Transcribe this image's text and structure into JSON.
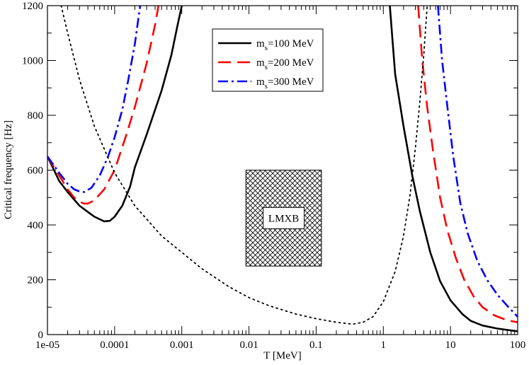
{
  "chart_data": {
    "type": "line",
    "xscale": "log",
    "xlabel": "T [MeV]",
    "ylabel": "Critical frequency [Hz]",
    "xlim": [
      1e-05,
      100
    ],
    "ylim": [
      0,
      1200
    ],
    "xticks": [
      {
        "value": 1e-05,
        "label": "1e-05"
      },
      {
        "value": 0.0001,
        "label": "0.0001"
      },
      {
        "value": 0.001,
        "label": "0.001"
      },
      {
        "value": 0.01,
        "label": "0.01"
      },
      {
        "value": 0.1,
        "label": "0.1"
      },
      {
        "value": 1,
        "label": "1"
      },
      {
        "value": 10,
        "label": "10"
      },
      {
        "value": 100,
        "label": "100"
      }
    ],
    "yticks": [
      {
        "value": 0,
        "label": "0"
      },
      {
        "value": 200,
        "label": "200"
      },
      {
        "value": 400,
        "label": "400"
      },
      {
        "value": 600,
        "label": "600"
      },
      {
        "value": 800,
        "label": "800"
      },
      {
        "value": 1000,
        "label": "1000"
      },
      {
        "value": 1200,
        "label": "1200"
      }
    ],
    "legend_position": "top-center",
    "series": [
      {
        "name": "ms100",
        "legend_main": "m",
        "legend_sub": "s",
        "legend_rest": "=100 MeV",
        "color": "#000000",
        "dash": "solid",
        "segments": [
          [
            [
              1e-05,
              650
            ],
            [
              1.5e-05,
              560
            ],
            [
              2e-05,
              520
            ],
            [
              3e-05,
              470
            ],
            [
              5e-05,
              430
            ],
            [
              7e-05,
              413
            ],
            [
              8.5e-05,
              415
            ],
            [
              0.0001,
              430
            ],
            [
              0.00013,
              470
            ],
            [
              0.00017,
              540
            ],
            [
              0.0002,
              610
            ],
            [
              0.0003,
              730
            ],
            [
              0.0005,
              890
            ],
            [
              0.0007,
              1020
            ],
            [
              0.00085,
              1120
            ],
            [
              0.001,
              1200
            ]
          ],
          [
            [
              1.25,
              1200
            ],
            [
              1.5,
              950
            ],
            [
              2,
              760
            ],
            [
              2.7,
              580
            ],
            [
              3.5,
              450
            ],
            [
              5,
              300
            ],
            [
              7,
              195
            ],
            [
              10,
              125
            ],
            [
              15,
              75
            ],
            [
              20,
              50
            ],
            [
              30,
              33
            ],
            [
              50,
              22
            ],
            [
              70,
              17
            ],
            [
              100,
              12
            ]
          ]
        ]
      },
      {
        "name": "ms200",
        "legend_main": "m",
        "legend_sub": "s",
        "legend_rest": "=200 MeV",
        "color": "#ff0000",
        "dash": "long-dash",
        "segments": [
          [
            [
              1e-05,
              650
            ],
            [
              1.5e-05,
              580
            ],
            [
              2e-05,
              530
            ],
            [
              2.5e-05,
              500
            ],
            [
              3e-05,
              485
            ],
            [
              3.5e-05,
              478
            ],
            [
              4e-05,
              478
            ],
            [
              5e-05,
              490
            ],
            [
              7e-05,
              530
            ],
            [
              0.0001,
              600
            ],
            [
              0.00015,
              730
            ],
            [
              0.0002,
              830
            ],
            [
              0.0003,
              990
            ],
            [
              0.0004,
              1130
            ],
            [
              0.00045,
              1200
            ]
          ],
          [
            [
              3.3,
              1200
            ],
            [
              3.8,
              1000
            ],
            [
              4.5,
              830
            ],
            [
              5.5,
              670
            ],
            [
              7,
              500
            ],
            [
              9,
              380
            ],
            [
              12,
              280
            ],
            [
              16,
              200
            ],
            [
              22,
              140
            ],
            [
              30,
              100
            ],
            [
              45,
              70
            ],
            [
              70,
              52
            ],
            [
              100,
              45
            ]
          ]
        ]
      },
      {
        "name": "ms300",
        "legend_main": "m",
        "legend_sub": "s",
        "legend_rest": "=300 MeV",
        "color": "#0000ff",
        "dash": "dash-dot",
        "segments": [
          [
            [
              1e-05,
              650
            ],
            [
              1.5e-05,
              590
            ],
            [
              2e-05,
              550
            ],
            [
              2.5e-05,
              530
            ],
            [
              3e-05,
              522
            ],
            [
              3.5e-05,
              520
            ],
            [
              4.5e-05,
              535
            ],
            [
              6e-05,
              580
            ],
            [
              8e-05,
              650
            ],
            [
              0.0001,
              720
            ],
            [
              0.00013,
              820
            ],
            [
              0.00016,
              930
            ],
            [
              0.0002,
              1060
            ],
            [
              0.00024,
              1200
            ]
          ],
          [
            [
              6.5,
              1200
            ],
            [
              7.5,
              1000
            ],
            [
              9,
              830
            ],
            [
              11,
              650
            ],
            [
              14,
              480
            ],
            [
              18,
              370
            ],
            [
              25,
              270
            ],
            [
              35,
              200
            ],
            [
              50,
              145
            ],
            [
              70,
              105
            ],
            [
              100,
              65
            ]
          ]
        ]
      },
      {
        "name": "dotted-curve",
        "color": "#000000",
        "dash": "dotted",
        "segments": [
          [
            [
              1.6e-05,
              1200
            ],
            [
              2e-05,
              1100
            ],
            [
              3e-05,
              930
            ],
            [
              5e-05,
              760
            ],
            [
              0.0001,
              590
            ],
            [
              0.0002,
              470
            ],
            [
              0.0005,
              360
            ],
            [
              0.001,
              300
            ],
            [
              0.002,
              240
            ],
            [
              0.005,
              175
            ],
            [
              0.01,
              135
            ],
            [
              0.02,
              105
            ],
            [
              0.05,
              75
            ],
            [
              0.1,
              58
            ],
            [
              0.2,
              45
            ],
            [
              0.35,
              38
            ],
            [
              0.5,
              45
            ],
            [
              0.7,
              65
            ],
            [
              1,
              120
            ],
            [
              1.5,
              230
            ],
            [
              2,
              360
            ],
            [
              2.5,
              510
            ],
            [
              3,
              680
            ],
            [
              3.5,
              850
            ],
            [
              4,
              1020
            ],
            [
              4.5,
              1200
            ]
          ]
        ]
      }
    ],
    "annotation_box": {
      "label": "LMXB",
      "x_range": [
        0.009,
        0.12
      ],
      "y_range": [
        250,
        600
      ],
      "fill": "cross-hatch"
    }
  }
}
